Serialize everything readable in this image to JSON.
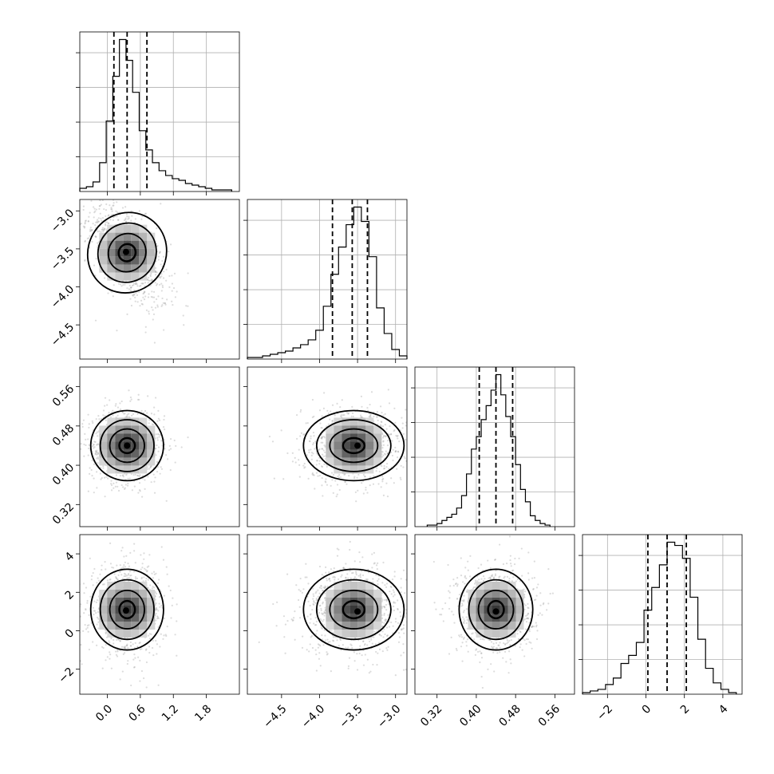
{
  "chart_data": {
    "type": "corner",
    "ylim": [
      -3.3,
      5.0
    ],
    "grid": true,
    "parameters": [
      {
        "index": 0,
        "range": [
          -0.5,
          2.4
        ],
        "ticks": [
          0.0,
          0.6,
          1.2,
          1.8
        ],
        "tick_labels": [
          "0.0",
          "0.6",
          "1.2",
          "1.8"
        ],
        "quantiles": [
          0.12,
          0.36,
          0.72
        ],
        "histogram": {
          "edges": [
            -0.5,
            -0.38,
            -0.26,
            -0.14,
            -0.02,
            0.1,
            0.22,
            0.34,
            0.46,
            0.58,
            0.7,
            0.82,
            0.94,
            1.06,
            1.18,
            1.3,
            1.42,
            1.54,
            1.66,
            1.78,
            1.9,
            2.02,
            2.14,
            2.26
          ],
          "counts": [
            2,
            3,
            6,
            18,
            44,
            72,
            95,
            82,
            62,
            38,
            26,
            18,
            13,
            10,
            8,
            7,
            5,
            4,
            3,
            2,
            1,
            1,
            1
          ]
        }
      },
      {
        "index": 1,
        "range": [
          -4.95,
          -2.85
        ],
        "ticks": [
          -4.5,
          -4.0,
          -3.5,
          -3.0
        ],
        "tick_labels": [
          "−4.5",
          "−4.0",
          "−3.5",
          "−3.0"
        ],
        "quantiles": [
          -3.83,
          -3.57,
          -3.37
        ],
        "histogram": {
          "edges": [
            -4.95,
            -4.85,
            -4.75,
            -4.65,
            -4.55,
            -4.45,
            -4.35,
            -4.25,
            -4.15,
            -4.05,
            -3.95,
            -3.85,
            -3.75,
            -3.65,
            -3.55,
            -3.45,
            -3.35,
            -3.25,
            -3.15,
            -3.05,
            -2.95,
            -2.85
          ],
          "counts": [
            1,
            1,
            2,
            3,
            4,
            5,
            7,
            9,
            12,
            18,
            33,
            53,
            70,
            84,
            95,
            86,
            64,
            32,
            16,
            6,
            2
          ]
        }
      },
      {
        "index": 2,
        "range": [
          0.275,
          0.6
        ],
        "ticks": [
          0.32,
          0.4,
          0.48,
          0.56
        ],
        "tick_labels": [
          "0.32",
          "0.40",
          "0.48",
          "0.56"
        ],
        "quantiles": [
          0.406,
          0.44,
          0.474
        ],
        "histogram": {
          "edges": [
            0.3,
            0.31,
            0.32,
            0.33,
            0.34,
            0.35,
            0.36,
            0.37,
            0.38,
            0.39,
            0.4,
            0.41,
            0.42,
            0.43,
            0.44,
            0.45,
            0.46,
            0.47,
            0.48,
            0.49,
            0.5,
            0.51,
            0.52,
            0.53,
            0.54,
            0.55
          ],
          "counts": [
            1,
            1,
            2,
            4,
            6,
            8,
            12,
            20,
            34,
            50,
            58,
            69,
            78,
            88,
            98,
            85,
            71,
            58,
            40,
            24,
            16,
            7,
            4,
            2,
            1
          ]
        }
      },
      {
        "index": 3,
        "range": [
          -3.3,
          5.0
        ],
        "ticks": [
          -2,
          0,
          2,
          4
        ],
        "tick_labels": [
          "−2",
          "0",
          "2",
          "4"
        ],
        "quantiles": [
          0.1,
          1.1,
          2.1
        ],
        "histogram": {
          "edges": [
            -3.3,
            -2.9,
            -2.5,
            -2.1,
            -1.7,
            -1.3,
            -0.9,
            -0.5,
            -0.1,
            0.3,
            0.7,
            1.1,
            1.5,
            1.9,
            2.3,
            2.7,
            3.1,
            3.5,
            3.9,
            4.3,
            4.7
          ],
          "counts": [
            1,
            2,
            3,
            6,
            10,
            19,
            24,
            32,
            52,
            66,
            80,
            94,
            92,
            84,
            60,
            34,
            16,
            7,
            3,
            1
          ]
        }
      }
    ],
    "pairs": [
      {
        "x": 0,
        "y": 1,
        "mean": [
          0.36,
          -3.55
        ],
        "sd": [
          0.32,
          0.32
        ],
        "rho": -0.6,
        "mode": [
          0.34,
          -3.54
        ]
      },
      {
        "x": 0,
        "y": 2,
        "mean": [
          0.36,
          0.44
        ],
        "sd": [
          0.3,
          0.034
        ],
        "rho": 0.0,
        "mode": [
          0.36,
          0.44
        ]
      },
      {
        "x": 1,
        "y": 2,
        "mean": [
          -3.55,
          0.44
        ],
        "sd": [
          0.3,
          0.034
        ],
        "rho": 0.0,
        "mode": [
          -3.5,
          0.44
        ]
      },
      {
        "x": 0,
        "y": 3,
        "mean": [
          0.36,
          1.1
        ],
        "sd": [
          0.3,
          1.0
        ],
        "rho": 0.0,
        "mode": [
          0.34,
          1.05
        ]
      },
      {
        "x": 1,
        "y": 3,
        "mean": [
          -3.55,
          1.1
        ],
        "sd": [
          0.3,
          1.0
        ],
        "rho": 0.0,
        "mode": [
          -3.5,
          1.0
        ]
      },
      {
        "x": 2,
        "y": 3,
        "mean": [
          0.44,
          1.1
        ],
        "sd": [
          0.034,
          1.0
        ],
        "rho": 0.0,
        "mode": [
          0.44,
          1.0
        ]
      }
    ]
  }
}
